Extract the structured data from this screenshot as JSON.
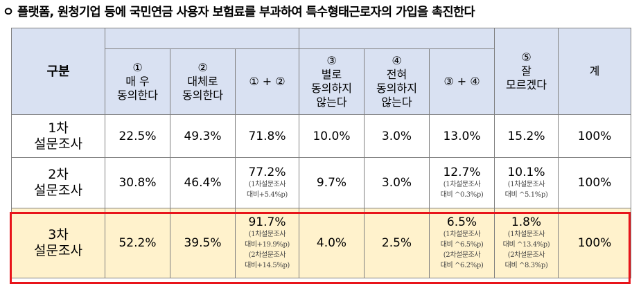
{
  "title": "ㅇ 플랫폼, 원청기업 등에 국민연금 사용자 보험료를 부과하여 특수형태근로자의 가입을 촉진한다",
  "header": {
    "category": "구분",
    "c1": {
      "num": "①",
      "line1": "매 우",
      "line2": "동의한다"
    },
    "c2": {
      "num": "②",
      "line1": "대체로",
      "line2": "동의한다"
    },
    "c12": "① + ②",
    "c3": {
      "num": "③",
      "line1": "별로",
      "line2": "동의하지",
      "line3": "않는다"
    },
    "c4": {
      "num": "④",
      "line1": "전혀",
      "line2": "동의하지",
      "line3": "않는다"
    },
    "c34": "③ + ④",
    "c5": {
      "num": "⑤",
      "line1": "잘",
      "line2": "모르겠다"
    },
    "total": "계"
  },
  "rows": [
    {
      "label1": "1차",
      "label2": "설문조사",
      "c1": "22.5%",
      "c2": "49.3%",
      "c12": "71.8%",
      "c12_notes": [],
      "c3": "10.0%",
      "c4": "3.0%",
      "c34": "13.0%",
      "c34_notes": [],
      "c5": "15.2%",
      "c5_notes": [],
      "total": "100%"
    },
    {
      "label1": "2차",
      "label2": "설문조사",
      "c1": "30.8%",
      "c2": "46.4%",
      "c12": "77.2%",
      "c12_notes": [
        "(1차설문조사",
        "대비+5.4%p)"
      ],
      "c3": "9.7%",
      "c4": "3.0%",
      "c34": "12.7%",
      "c34_notes": [
        "(1차설문조사",
        "대비 ^0.3%p)"
      ],
      "c5": "10.1%",
      "c5_notes": [
        "(1차설문조사",
        "대비 ^5.1%p)"
      ],
      "total": "100%"
    },
    {
      "label1": "3차",
      "label2": "설문조사",
      "c1": "52.2%",
      "c2": "39.5%",
      "c12": "91.7%",
      "c12_notes": [
        "(1차설문조사",
        "대비+19.9%p)",
        "(2차설문조사",
        "대비+14.5%p)"
      ],
      "c3": "4.0%",
      "c4": "2.5%",
      "c34": "6.5%",
      "c34_notes": [
        "(1차설문조사",
        "대비 ^6.5%p)",
        "(2차설문조사",
        "대비 ^6.2%p)"
      ],
      "c5": "1.8%",
      "c5_notes": [
        "(1차설문조사",
        "대비 ^13.4%p)",
        "(2차설문조사",
        "대비 ^8.3%p)"
      ],
      "total": "100%"
    }
  ]
}
